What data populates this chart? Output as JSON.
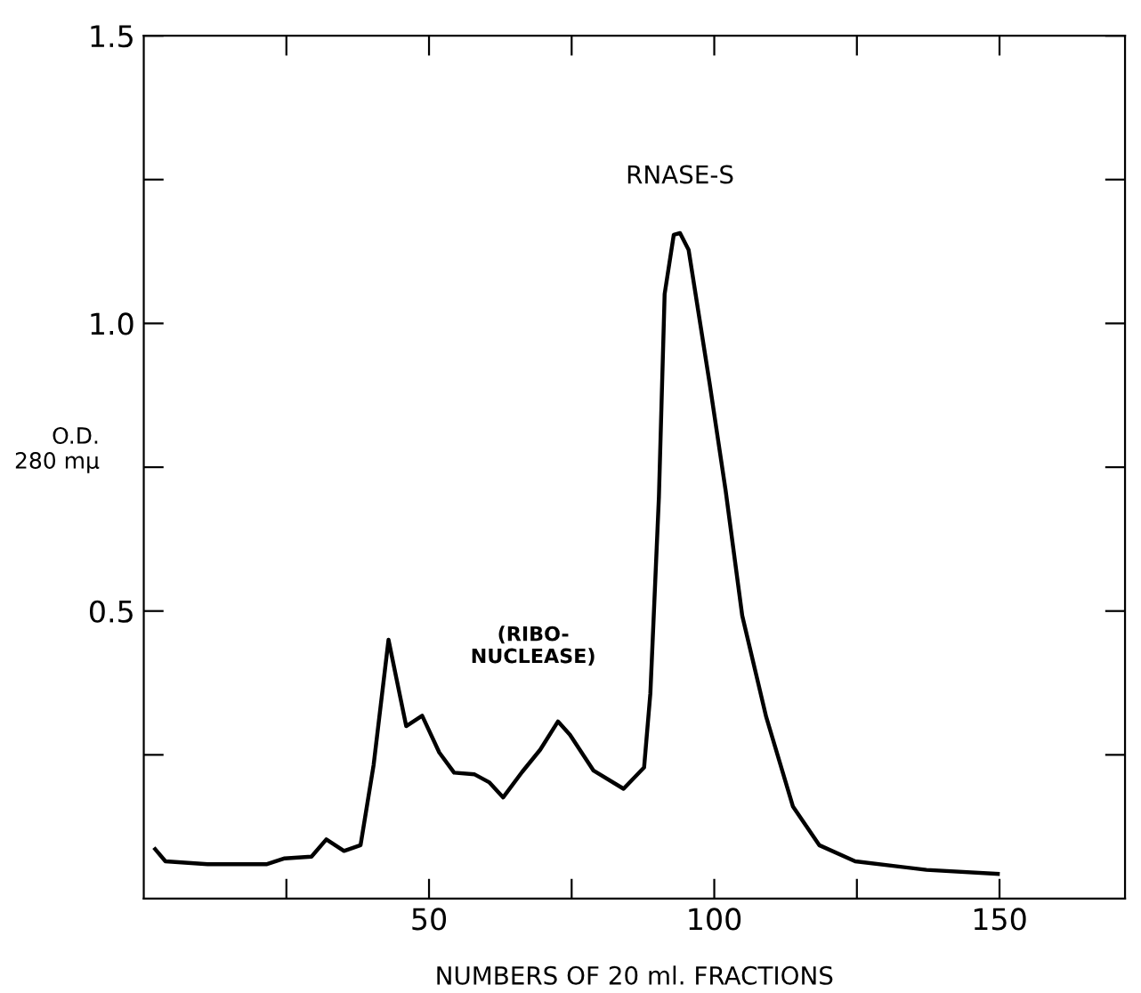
{
  "chart_data": {
    "type": "line",
    "xlabel": "NUMBERS OF 20 ml. FRACTIONS",
    "ylabel": "O.D.\n280 mμ",
    "x": [
      2.0,
      3.8,
      11.2,
      21.6,
      24.7,
      29.4,
      32.0,
      35.1,
      38.0,
      40.3,
      42.9,
      46.0,
      48.8,
      51.8,
      54.4,
      58.0,
      60.6,
      63.0,
      66.3,
      69.5,
      72.6,
      74.7,
      78.8,
      84.1,
      87.7,
      88.8,
      90.3,
      91.3,
      92.9,
      94.0,
      95.5,
      99.2,
      102.0,
      104.9,
      109.1,
      113.8,
      118.4,
      124.7,
      137.2,
      149.7
    ],
    "series": [
      {
        "color": "#000000",
        "values": [
          0.086,
          0.065,
          0.06,
          0.06,
          0.07,
          0.073,
          0.103,
          0.083,
          0.093,
          0.233,
          0.45,
          0.3,
          0.318,
          0.254,
          0.219,
          0.216,
          0.202,
          0.176,
          0.22,
          0.259,
          0.308,
          0.285,
          0.223,
          0.191,
          0.228,
          0.357,
          0.699,
          1.051,
          1.154,
          1.157,
          1.128,
          0.895,
          0.709,
          0.492,
          0.316,
          0.16,
          0.093,
          0.065,
          0.05,
          0.043
        ]
      }
    ],
    "annotations": [
      {
        "text": "RNASE-S",
        "x": 94.0,
        "y": 1.157
      },
      {
        "text": "(RIBO-\nNUCLEASE)",
        "x": 72.6,
        "y": 0.308
      }
    ],
    "xlim": [
      0,
      172
    ],
    "ylim": [
      0,
      1.5
    ],
    "xticks": [
      {
        "value": 25,
        "label": null
      },
      50,
      {
        "value": 75,
        "label": null
      },
      100,
      {
        "value": 125,
        "label": null
      },
      150
    ],
    "yticks": [
      {
        "value": 0.25,
        "label": null
      },
      0.5,
      {
        "value": 0.75,
        "label": null
      },
      "1.0",
      {
        "value": 1.25,
        "label": null
      },
      1.5
    ],
    "grid": false,
    "legend": false,
    "marker": "none",
    "line_style": "solid"
  }
}
